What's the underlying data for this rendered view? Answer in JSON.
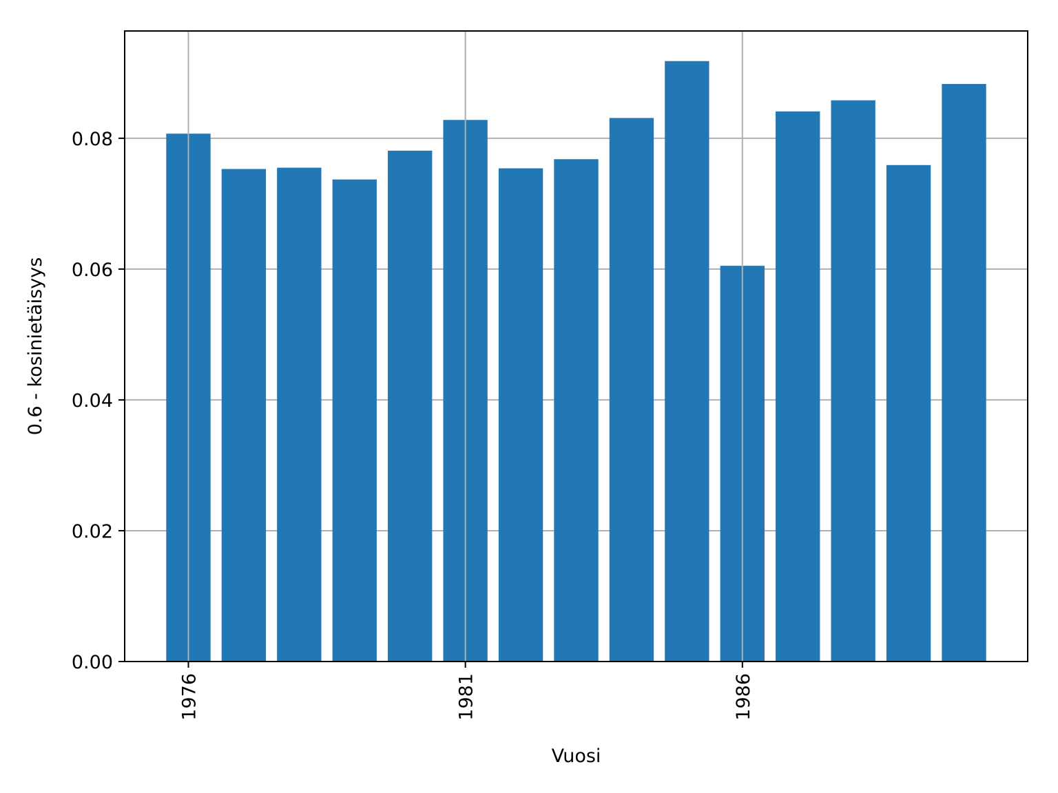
{
  "chart_data": {
    "type": "bar",
    "title": "",
    "xlabel": "Vuosi",
    "ylabel": "0.6 - kosinietäisyys",
    "categories": [
      1976,
      1977,
      1978,
      1979,
      1980,
      1981,
      1982,
      1983,
      1984,
      1985,
      1986,
      1987,
      1988,
      1989,
      1990
    ],
    "values": [
      0.0807,
      0.0753,
      0.0755,
      0.0737,
      0.0781,
      0.0828,
      0.0754,
      0.0768,
      0.0831,
      0.0918,
      0.0605,
      0.0841,
      0.0858,
      0.0759,
      0.0883
    ],
    "x_ticks": [
      "1976",
      "1981",
      "1986"
    ],
    "y_ticks": [
      "0.00",
      "0.02",
      "0.04",
      "0.06",
      "0.08"
    ],
    "ylim": [
      0,
      0.0964
    ],
    "xlim": [
      1974.85,
      1991.15
    ],
    "x_tick_rotation": "vertical",
    "grid": true,
    "bar_color": "#2178b4",
    "grid_color": "#b0b0b0"
  }
}
